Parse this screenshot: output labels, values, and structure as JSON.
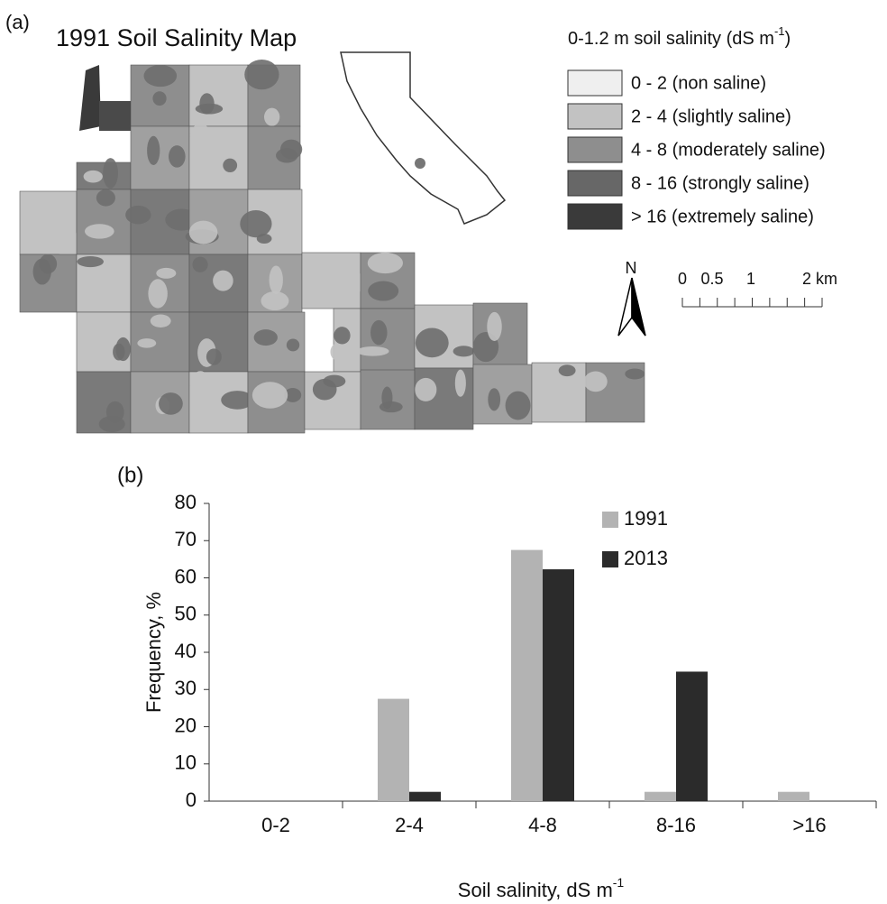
{
  "map": {
    "panel_label": "(a)",
    "title": "1991 Soil Salinity Map",
    "legend_title": {
      "text": "0-1.2 m soil salinity (dS m",
      "superscript": "-1",
      "close": ")"
    },
    "legend": [
      {
        "label": "0 - 2 (non saline)",
        "color": "#efefef"
      },
      {
        "label": "2 - 4 (slightly saline)",
        "color": "#c2c2c2"
      },
      {
        "label": "4 - 8 (moderately saline)",
        "color": "#8e8e8e"
      },
      {
        "label": "8 - 16 (strongly saline)",
        "color": "#676767"
      },
      {
        "label": "> 16 (extremely saline)",
        "color": "#3a3a3a"
      }
    ],
    "north": "N",
    "scale_labels": [
      "0",
      "0.5",
      "1",
      "2 km"
    ]
  },
  "chart_data": {
    "type": "bar",
    "panel_label": "(b)",
    "categories": [
      "0-2",
      "2-4",
      "4-8",
      "8-16",
      ">16"
    ],
    "series": [
      {
        "name": "1991",
        "color": "#b3b3b3",
        "values": [
          0,
          27.5,
          67.5,
          2.5,
          2.5
        ]
      },
      {
        "name": "2013",
        "color": "#2b2b2b",
        "values": [
          0,
          2.5,
          62.3,
          34.8,
          0
        ]
      }
    ],
    "ylim": [
      0,
      80
    ],
    "yticks": [
      0,
      10,
      20,
      30,
      40,
      50,
      60,
      70,
      80
    ],
    "ylabel": "Frequency, %",
    "xlabel": {
      "text": "Soil salinity, dS m",
      "superscript": "-1"
    }
  }
}
